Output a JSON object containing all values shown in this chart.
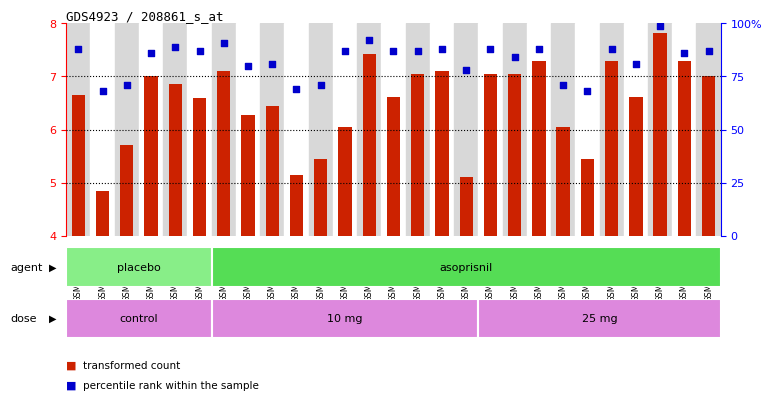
{
  "title": "GDS4923 / 208861_s_at",
  "samples": [
    "GSM1152626",
    "GSM1152629",
    "GSM1152632",
    "GSM1152638",
    "GSM1152647",
    "GSM1152652",
    "GSM1152625",
    "GSM1152627",
    "GSM1152631",
    "GSM1152634",
    "GSM1152636",
    "GSM1152637",
    "GSM1152640",
    "GSM1152642",
    "GSM1152644",
    "GSM1152646",
    "GSM1152651",
    "GSM1152628",
    "GSM1152630",
    "GSM1152633",
    "GSM1152635",
    "GSM1152639",
    "GSM1152641",
    "GSM1152643",
    "GSM1152645",
    "GSM1152649",
    "GSM1152650"
  ],
  "bar_values": [
    6.65,
    4.85,
    5.7,
    7.0,
    6.85,
    6.6,
    7.1,
    6.28,
    6.44,
    5.15,
    5.45,
    6.05,
    7.42,
    6.62,
    7.05,
    7.1,
    5.1,
    7.05,
    7.05,
    7.3,
    6.05,
    5.45,
    7.3,
    6.62,
    7.82,
    7.3,
    7.0
  ],
  "percentile_values": [
    88,
    68,
    71,
    86,
    89,
    87,
    91,
    80,
    81,
    69,
    71,
    87,
    92,
    87,
    87,
    88,
    78,
    88,
    84,
    88,
    71,
    68,
    88,
    81,
    99,
    86,
    87
  ],
  "ylim_left": [
    4,
    8
  ],
  "ylim_right": [
    0,
    100
  ],
  "yticks_left": [
    4,
    5,
    6,
    7,
    8
  ],
  "yticks_right": [
    0,
    25,
    50,
    75,
    100
  ],
  "bar_color": "#cc2200",
  "dot_color": "#0000cc",
  "agent_groups": [
    {
      "label": "placebo",
      "start": 0,
      "end": 6,
      "color": "#88ee88"
    },
    {
      "label": "asoprisnil",
      "start": 6,
      "end": 27,
      "color": "#55dd55"
    }
  ],
  "dose_groups": [
    {
      "label": "control",
      "start": 0,
      "end": 6,
      "color": "#dd88dd"
    },
    {
      "label": "10 mg",
      "start": 6,
      "end": 17,
      "color": "#dd88dd"
    },
    {
      "label": "25 mg",
      "start": 17,
      "end": 27,
      "color": "#dd88dd"
    }
  ],
  "agent_label": "agent",
  "dose_label": "dose",
  "legend_bar_label": "transformed count",
  "legend_dot_label": "percentile rank within the sample",
  "xtick_bg_odd": "#d8d8d8",
  "xtick_bg_even": "#ffffff"
}
